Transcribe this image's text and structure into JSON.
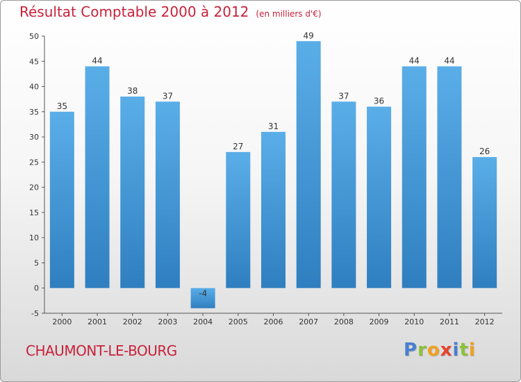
{
  "header": {
    "title": "Résultat Comptable 2000 à 2012",
    "subtitle": "(en milliers d'€)"
  },
  "footer": {
    "place": "CHAUMONT-LE-BOURG",
    "logo_letters": [
      {
        "ch": "P",
        "color": "#4a7fd0"
      },
      {
        "ch": "r",
        "color": "#8ac23a"
      },
      {
        "ch": "o",
        "color": "#f2a01c"
      },
      {
        "ch": "x",
        "color": "#e8432e"
      },
      {
        "ch": "i",
        "color": "#4a7fd0"
      },
      {
        "ch": "t",
        "color": "#8ac23a"
      },
      {
        "ch": "i",
        "color": "#f2a01c"
      }
    ]
  },
  "chart_data": {
    "type": "bar",
    "title": "Résultat Comptable 2000 à 2012",
    "subtitle": "(en milliers d'€)",
    "xlabel": "",
    "ylabel": "",
    "categories": [
      "2000",
      "2001",
      "2002",
      "2003",
      "2004",
      "2005",
      "2006",
      "2007",
      "2008",
      "2009",
      "2010",
      "2011",
      "2012"
    ],
    "values": [
      35,
      44,
      38,
      37,
      -4,
      27,
      31,
      49,
      37,
      36,
      44,
      44,
      26
    ],
    "ylim": [
      -5,
      50
    ],
    "yticks": [
      -5,
      0,
      5,
      10,
      15,
      20,
      25,
      30,
      35,
      40,
      45,
      50
    ],
    "grid": false,
    "colors": {
      "bar_top": "#5aaee8",
      "bar_bottom": "#2f7fc0",
      "axis": "#555555",
      "title": "#c8213a"
    }
  }
}
